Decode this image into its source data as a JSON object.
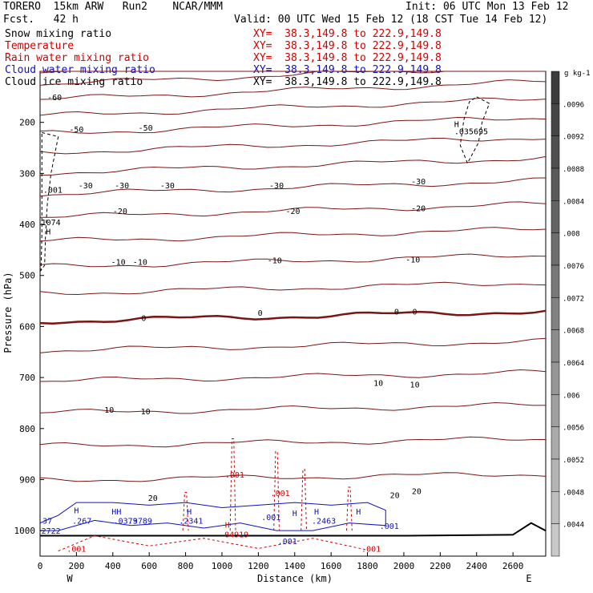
{
  "header": {
    "model": "TORERO  15km ARW   Run2    NCAR/MMM",
    "init": "Init: 06 UTC Mon 13 Feb 12",
    "fcst": "Fcst.   42 h",
    "valid": "Valid: 00 UTC Wed 15 Feb 12 (18 CST Tue 14 Feb 12)"
  },
  "fields": [
    {
      "name": "Snow mixing ratio",
      "color": "#000000",
      "xy": "XY=  38.3,149.8 to 222.9,149.8"
    },
    {
      "name": "Temperature",
      "color": "#d00000",
      "xy": "XY=  38.3,149.8 to 222.9,149.8"
    },
    {
      "name": "Rain water mixing ratio",
      "color": "#d00000",
      "xy": "XY=  38.3,149.8 to 222.9,149.8"
    },
    {
      "name": "Cloud water mixing ratio",
      "color": "#1010c0",
      "xy": "XY=  38.3,149.8 to 222.9,149.8"
    },
    {
      "name": "Cloud ice mixing ratio",
      "color": "#000000",
      "xy": "XY=  38.3,149.8 to 222.9,149.8"
    }
  ],
  "chart_data": {
    "type": "contour",
    "xlabel": "Distance (km)",
    "ylabel": "Pressure (hPa)",
    "xlim": [
      0,
      2780
    ],
    "ylim": [
      1050,
      100
    ],
    "x_ticks": [
      0,
      200,
      400,
      600,
      800,
      1000,
      1200,
      1400,
      1600,
      1800,
      2000,
      2200,
      2400,
      2600
    ],
    "y_ticks": [
      200,
      300,
      400,
      500,
      600,
      700,
      800,
      900,
      1000
    ],
    "endpoint_left": "W",
    "endpoint_right": "E",
    "colorbar": {
      "unit": "g kg-1",
      "ticks": [
        ".0096",
        ".0092",
        ".0088",
        ".0084",
        ".008",
        ".0076",
        ".0072",
        ".0068",
        ".0064",
        ".006",
        ".0056",
        ".0052",
        ".0048",
        ".0044"
      ]
    },
    "temperature_labels": [
      {
        "x": 80,
        "p": 150,
        "text": "-60"
      },
      {
        "x": 200,
        "p": 213,
        "text": "-50"
      },
      {
        "x": 580,
        "p": 210,
        "text": "-50"
      },
      {
        "x": 250,
        "p": 323,
        "text": "-30"
      },
      {
        "x": 450,
        "p": 323,
        "text": "-30"
      },
      {
        "x": 700,
        "p": 323,
        "text": "-30"
      },
      {
        "x": 1300,
        "p": 323,
        "text": "-30"
      },
      {
        "x": 2080,
        "p": 315,
        "text": "-30"
      },
      {
        "x": 440,
        "p": 373,
        "text": "-20"
      },
      {
        "x": 1390,
        "p": 373,
        "text": "-20"
      },
      {
        "x": 2080,
        "p": 368,
        "text": "-20"
      },
      {
        "x": 430,
        "p": 473,
        "text": "-10"
      },
      {
        "x": 550,
        "p": 473,
        "text": "-10"
      },
      {
        "x": 1290,
        "p": 470,
        "text": "-10"
      },
      {
        "x": 2050,
        "p": 468,
        "text": "-10"
      },
      {
        "x": 570,
        "p": 583,
        "text": "0"
      },
      {
        "x": 1210,
        "p": 573,
        "text": "0"
      },
      {
        "x": 1960,
        "p": 570,
        "text": "0"
      },
      {
        "x": 2060,
        "p": 570,
        "text": "0"
      },
      {
        "x": 380,
        "p": 763,
        "text": "10"
      },
      {
        "x": 580,
        "p": 766,
        "text": "10"
      },
      {
        "x": 1860,
        "p": 710,
        "text": "10"
      },
      {
        "x": 2060,
        "p": 713,
        "text": "10"
      },
      {
        "x": 620,
        "p": 935,
        "text": "20"
      },
      {
        "x": 1950,
        "p": 930,
        "text": "20"
      },
      {
        "x": 2070,
        "p": 922,
        "text": "20"
      }
    ],
    "ice_labels": [
      {
        "x": 2290,
        "p": 203,
        "text": "H"
      },
      {
        "x": 2370,
        "p": 217,
        "text": ".035695"
      },
      {
        "x": 70,
        "p": 332,
        "text": ".001"
      },
      {
        "x": 45,
        "p": 413,
        "text": "H"
      },
      {
        "x": 60,
        "p": 395,
        "text": "1074"
      }
    ],
    "rain_labels": [
      {
        "x": 1070,
        "p": 890,
        "text": ".001"
      },
      {
        "x": 1320,
        "p": 926,
        "text": ".001"
      },
      {
        "x": 1030,
        "p": 988,
        "text": "H"
      },
      {
        "x": 1080,
        "p": 1007,
        "text": "04919"
      },
      {
        "x": 200,
        "p": 1035,
        "text": ".001"
      },
      {
        "x": 1820,
        "p": 1035,
        "text": ".001"
      }
    ],
    "cloud_labels": [
      {
        "x": 40,
        "p": 980,
        "text": "37"
      },
      {
        "x": 60,
        "p": 1000,
        "text": "2722"
      },
      {
        "x": 200,
        "p": 960,
        "text": "H"
      },
      {
        "x": 230,
        "p": 980,
        "text": ".267"
      },
      {
        "x": 420,
        "p": 962,
        "text": "HH"
      },
      {
        "x": 470,
        "p": 980,
        "text": ".0379"
      },
      {
        "x": 550,
        "p": 980,
        "text": ".3789"
      },
      {
        "x": 820,
        "p": 962,
        "text": "H"
      },
      {
        "x": 830,
        "p": 980,
        "text": ".2341"
      },
      {
        "x": 1270,
        "p": 973,
        "text": ".001"
      },
      {
        "x": 1360,
        "p": 1020,
        "text": ".001"
      },
      {
        "x": 1400,
        "p": 965,
        "text": "H"
      },
      {
        "x": 1520,
        "p": 962,
        "text": "H"
      },
      {
        "x": 1560,
        "p": 980,
        "text": ".2463"
      },
      {
        "x": 1750,
        "p": 962,
        "text": "H"
      },
      {
        "x": 1920,
        "p": 990,
        "text": ".001"
      }
    ],
    "terrain": [
      [
        0,
        1010
      ],
      [
        2000,
        1010
      ],
      [
        2600,
        1008
      ],
      [
        2700,
        985
      ],
      [
        2780,
        1000
      ]
    ]
  }
}
